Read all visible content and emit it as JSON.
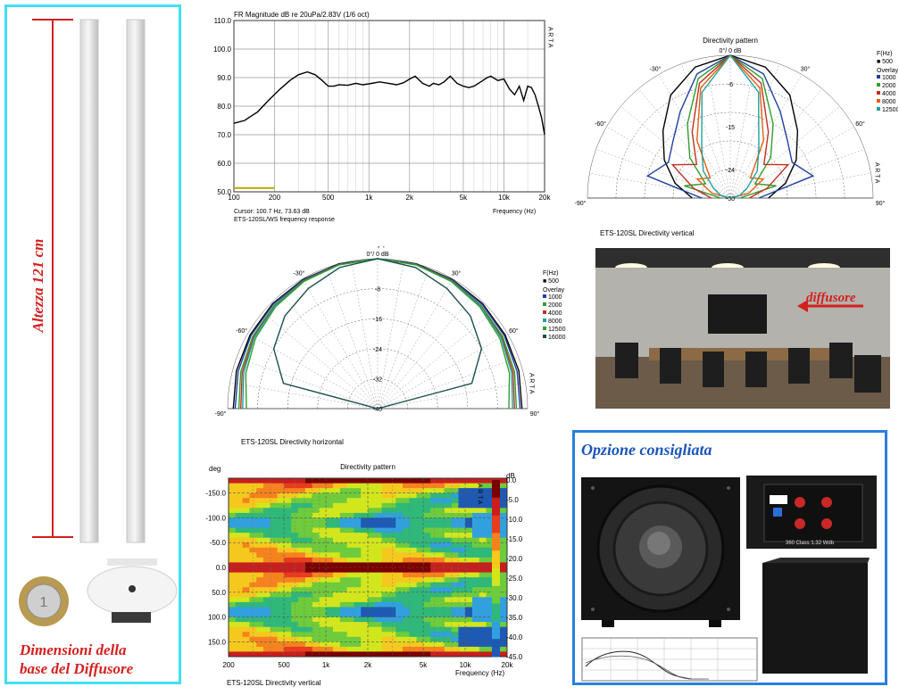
{
  "left_panel": {
    "height_label": "Altezza 121 cm",
    "base_caption_line1": "Dimensioni della",
    "base_caption_line2": "base del Diffusore",
    "measure_color": "#d41f1f",
    "border_color": "#40e0f0"
  },
  "room_photo": {
    "label": "diffusore",
    "arrow_color": "#d41f1f"
  },
  "recommended": {
    "title": "Opzione consigliata",
    "amp_label": "360 Class   1.32 Wdb",
    "border_color": "#2b7fdc"
  },
  "chart_data": [
    {
      "type": "line",
      "title": "FR Magnitude dB re 20uPa/2.83V (1/6 oct)",
      "arta_label": "A R T A",
      "xscale": "log",
      "xlim": [
        100,
        20000
      ],
      "ylim": [
        50,
        110
      ],
      "xticks": [
        100,
        200,
        500,
        1000,
        2000,
        5000,
        10000,
        20000
      ],
      "xtick_labels": [
        "100",
        "200",
        "500",
        "1k",
        "2k",
        "5k",
        "10k",
        "20k"
      ],
      "yticks": [
        50,
        60,
        70,
        80,
        90,
        100,
        110
      ],
      "ytick_labels": [
        "50.0",
        "60.0",
        "70.0",
        "80.0",
        "90.0",
        "100.0",
        "110.0"
      ],
      "xlabel": "Frequency (Hz)",
      "cursor_text": "Cursor: 100.7 Hz, 73.63 dB",
      "caption": "ETS-120SL/WS frequency response",
      "series": [
        {
          "color": "#000000",
          "x": [
            100,
            120,
            150,
            180,
            220,
            260,
            300,
            350,
            400,
            450,
            500,
            550,
            600,
            700,
            800,
            900,
            1000,
            1200,
            1400,
            1600,
            1800,
            2000,
            2200,
            2500,
            2800,
            3000,
            3300,
            3600,
            4000,
            4500,
            5000,
            5500,
            6000,
            7000,
            7500,
            8000,
            9000,
            10000,
            11000,
            12000,
            13000,
            14000,
            15000,
            16000,
            17000,
            18000,
            19000,
            20000
          ],
          "y": [
            74,
            75,
            78,
            82,
            86,
            89,
            91,
            92,
            91,
            89,
            87,
            87,
            87.5,
            87.3,
            88,
            87.5,
            87.8,
            88.5,
            88,
            87.5,
            88.2,
            89.5,
            90.5,
            88,
            87,
            88,
            87.5,
            88.5,
            90.5,
            88,
            87,
            86.5,
            87,
            89,
            90,
            90.5,
            89,
            89.5,
            86,
            84,
            87,
            82,
            87,
            86.5,
            84,
            80,
            76,
            70
          ]
        },
        {
          "color": "#b8a800",
          "x": [
            100,
            200
          ],
          "y": [
            51.3,
            51.3
          ]
        }
      ]
    },
    {
      "type": "polar",
      "title": "Directivity pattern",
      "zero_label": "0°/ 0 dB",
      "angle_labels": [
        "-90°",
        "-60°",
        "-30°",
        "30°",
        "60°",
        "90°"
      ],
      "r_ticks": [
        -8,
        -16,
        -24,
        -32,
        -40
      ],
      "legend_title": "F(Hz)",
      "legend_base": "500",
      "legend_overlay": "Overlay",
      "legend_freqs": [
        "1000",
        "2000",
        "4000",
        "8000",
        "12500",
        "16000"
      ],
      "caption": "ETS-120SL Directivity horizontal",
      "arta_label": "A R T A",
      "series": [
        {
          "name": "500",
          "color": "#000000",
          "angles": [
            -90,
            -75,
            -60,
            -45,
            -30,
            -15,
            0,
            15,
            30,
            45,
            60,
            75,
            90
          ],
          "values": [
            -1.5,
            -1,
            -0.7,
            -0.4,
            -0.2,
            0,
            0,
            0,
            -0.2,
            -0.4,
            -0.7,
            -1,
            -1.5
          ]
        },
        {
          "name": "1000",
          "color": "#1f3f9f",
          "angles": [
            -90,
            -75,
            -60,
            -45,
            -30,
            -15,
            0,
            15,
            30,
            45,
            60,
            75,
            90
          ],
          "values": [
            -2,
            -1.5,
            -1,
            -0.6,
            -0.3,
            -0.1,
            0,
            -0.1,
            -0.3,
            -0.6,
            -1,
            -1.5,
            -2
          ]
        },
        {
          "name": "2000",
          "color": "#2f9f2f",
          "angles": [
            -90,
            -75,
            -60,
            -45,
            -30,
            -15,
            0,
            15,
            30,
            45,
            60,
            75,
            90
          ],
          "values": [
            -3,
            -2.2,
            -1.5,
            -1,
            -0.5,
            -0.2,
            0,
            -0.2,
            -0.5,
            -1,
            -1.5,
            -2.2,
            -3
          ]
        },
        {
          "name": "4000",
          "color": "#c03020",
          "angles": [
            -90,
            -75,
            -60,
            -45,
            -30,
            -15,
            0,
            15,
            30,
            45,
            60,
            75,
            90
          ],
          "values": [
            -3.5,
            -2.6,
            -1.8,
            -1.1,
            -0.6,
            -0.2,
            0,
            -0.2,
            -0.6,
            -1.1,
            -1.8,
            -2.6,
            -3.5
          ]
        },
        {
          "name": "8000",
          "color": "#20a0a0",
          "angles": [
            -90,
            -75,
            -60,
            -45,
            -30,
            -15,
            0,
            15,
            30,
            45,
            60,
            75,
            90
          ],
          "values": [
            -4,
            -3,
            -2,
            -1.2,
            -0.7,
            -0.3,
            0,
            -0.3,
            -0.7,
            -1.2,
            -2,
            -3,
            -4
          ]
        },
        {
          "name": "12500",
          "color": "#30a030",
          "angles": [
            -90,
            -75,
            -60,
            -45,
            -30,
            -15,
            0,
            15,
            30,
            45,
            60,
            75,
            90
          ],
          "values": [
            -5,
            -3.6,
            -2.4,
            -1.5,
            -0.8,
            -0.3,
            0,
            -0.3,
            -0.8,
            -1.5,
            -2.4,
            -3.6,
            -5
          ]
        },
        {
          "name": "16000",
          "color": "#1a4f4f",
          "angles": [
            -90,
            -75,
            -60,
            -45,
            -30,
            -15,
            0,
            15,
            30,
            45,
            60,
            75,
            90
          ],
          "values": [
            -40,
            -14,
            -8,
            -5,
            -3,
            -1,
            0,
            -1,
            -3,
            -5,
            -8,
            -14,
            -40
          ]
        }
      ]
    },
    {
      "type": "polar",
      "title": "Directivity pattern",
      "zero_label": "0°/ 0 dB",
      "angle_labels": [
        "-90°",
        "-60°",
        "-30°",
        "30°",
        "60°",
        "90°"
      ],
      "r_ticks": [
        -6,
        -15,
        -24,
        -30
      ],
      "legend_title": "F(Hz)",
      "legend_base": "500",
      "legend_overlay": "Overlay",
      "legend_freqs": [
        "1000",
        "2000",
        "4000",
        "8000",
        "12500"
      ],
      "caption": "ETS-120SL  Directivity vertical",
      "arta_label": "A R T A",
      "series": [
        {
          "name": "500",
          "color": "#000000",
          "angles": [
            -90,
            -75,
            -60,
            -45,
            -30,
            -15,
            0,
            15,
            30,
            45,
            60,
            75,
            90
          ],
          "values": [
            -22,
            -18,
            -14,
            -10,
            -5,
            -1.5,
            0,
            -1.5,
            -5,
            -10,
            -14,
            -18,
            -22
          ]
        },
        {
          "name": "1000",
          "color": "#1f3f9f",
          "angles": [
            -90,
            -75,
            -60,
            -45,
            -30,
            -15,
            0,
            15,
            30,
            45,
            60,
            75,
            90
          ],
          "values": [
            -24,
            -12,
            -15,
            -13,
            -9,
            -3,
            0,
            -3,
            -9,
            -13,
            -15,
            -12,
            -24
          ]
        },
        {
          "name": "2000",
          "color": "#2f9f2f",
          "angles": [
            -90,
            -75,
            -60,
            -45,
            -30,
            -15,
            0,
            15,
            30,
            45,
            60,
            75,
            90
          ],
          "values": [
            -28,
            -20,
            -24,
            -18,
            -12,
            -4,
            0,
            -4,
            -12,
            -18,
            -24,
            -20,
            -28
          ]
        },
        {
          "name": "4000",
          "color": "#c03020",
          "angles": [
            -90,
            -75,
            -60,
            -45,
            -30,
            -15,
            0,
            15,
            30,
            45,
            60,
            75,
            90
          ],
          "values": [
            -26,
            -22,
            -16,
            -20,
            -14,
            -5,
            0,
            -5,
            -14,
            -20,
            -16,
            -22,
            -26
          ]
        },
        {
          "name": "8000",
          "color": "#e06010",
          "angles": [
            -90,
            -75,
            -60,
            -45,
            -30,
            -15,
            0,
            15,
            30,
            45,
            60,
            75,
            90
          ],
          "values": [
            -30,
            -26,
            -22,
            -24,
            -16,
            -6,
            0,
            -6,
            -16,
            -24,
            -22,
            -26,
            -30
          ]
        },
        {
          "name": "12500",
          "color": "#20a0a0",
          "angles": [
            -90,
            -75,
            -60,
            -45,
            -30,
            -15,
            0,
            15,
            30,
            45,
            60,
            75,
            90
          ],
          "values": [
            -30,
            -28,
            -26,
            -22,
            -18,
            -7,
            0,
            -7,
            -18,
            -22,
            -26,
            -28,
            -30
          ]
        }
      ]
    },
    {
      "type": "heatmap",
      "title": "Directivity pattern",
      "ylabel": "deg",
      "xlabel": "Frequency (Hz)",
      "caption": "ETS-120SL   Directivity vertical",
      "arta_label": "A R T A",
      "xscale": "log",
      "xlim": [
        200,
        20000
      ],
      "ylim": [
        -180,
        180
      ],
      "xticks": [
        200,
        500,
        1000,
        2000,
        5000,
        10000,
        20000
      ],
      "xtick_labels": [
        "200",
        "500",
        "1k",
        "2k",
        "5k",
        "10k",
        "20k"
      ],
      "yticks": [
        -150,
        -100,
        -50,
        0,
        50,
        100,
        150
      ],
      "ytick_labels": [
        "-150.0",
        "-100.0",
        "-50.0",
        "0.0",
        "50.0",
        "100.0",
        "150.0"
      ],
      "colorbar_unit": "dB",
      "colorbar_ticks": [
        "0.0",
        "-5.0",
        "-10.0",
        "-15.0",
        "-20.0",
        "-25.0",
        "-30.0",
        "-35.0",
        "-40.0",
        "-45.0"
      ],
      "colorbar_colors": [
        "#7a0000",
        "#c81e1e",
        "#e83c1e",
        "#f5821e",
        "#f5c81e",
        "#d2e61e",
        "#6ecb3c",
        "#2fb87a",
        "#32a0dc",
        "#1e5ab4"
      ]
    }
  ]
}
